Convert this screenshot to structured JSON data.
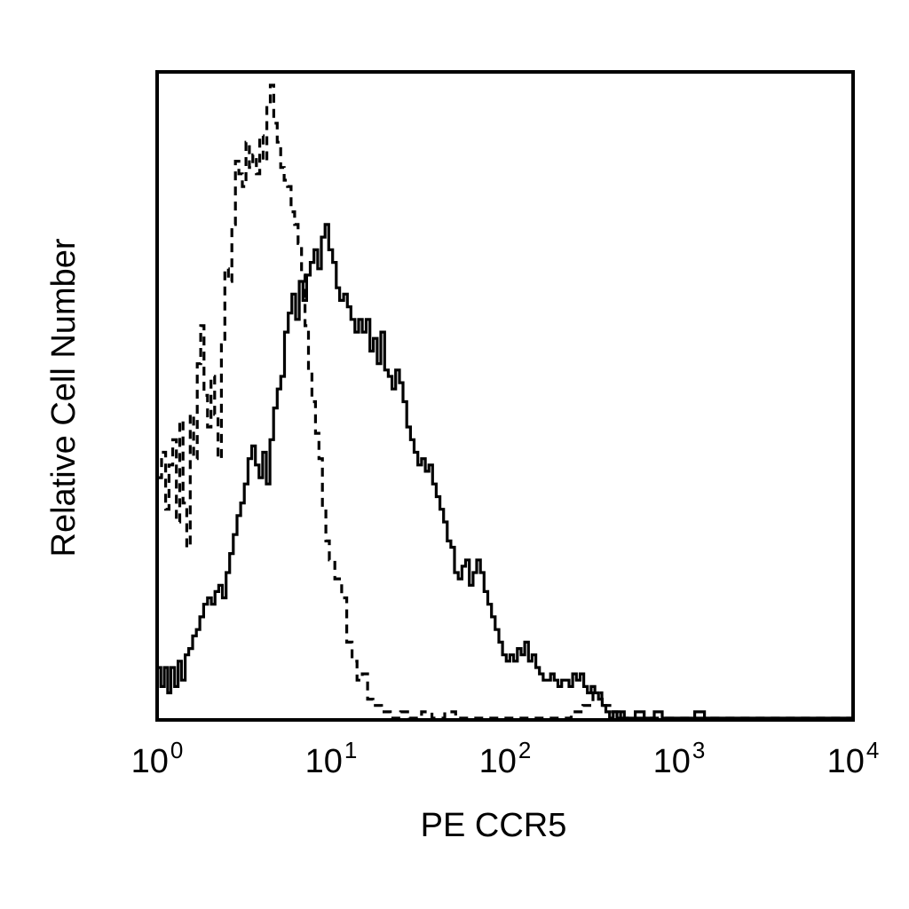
{
  "chart_data": {
    "type": "line",
    "title": "",
    "xlabel": "PE CCR5",
    "ylabel": "Relative Cell Number",
    "xscale": "log",
    "xlim": [
      1,
      10000
    ],
    "ylim": [
      0,
      100
    ],
    "grid": false,
    "legend": "none",
    "x_ticks": [
      {
        "base": "10",
        "exp": "0",
        "value": 1
      },
      {
        "base": "10",
        "exp": "1",
        "value": 10
      },
      {
        "base": "10",
        "exp": "2",
        "value": 100
      },
      {
        "base": "10",
        "exp": "3",
        "value": 1000
      },
      {
        "base": "10",
        "exp": "4",
        "value": 10000
      }
    ],
    "series": [
      {
        "style": "dashed",
        "color": "#000000",
        "points": [
          [
            1.0,
            38
          ],
          [
            1.06,
            42
          ],
          [
            1.12,
            33
          ],
          [
            1.17,
            40
          ],
          [
            1.23,
            44
          ],
          [
            1.29,
            31
          ],
          [
            1.35,
            47
          ],
          [
            1.41,
            34
          ],
          [
            1.48,
            27
          ],
          [
            1.55,
            48
          ],
          [
            1.62,
            41
          ],
          [
            1.7,
            56
          ],
          [
            1.78,
            62
          ],
          [
            1.86,
            51
          ],
          [
            1.95,
            46
          ],
          [
            2.04,
            54
          ],
          [
            2.14,
            48
          ],
          [
            2.24,
            41
          ],
          [
            2.34,
            59
          ],
          [
            2.45,
            71
          ],
          [
            2.57,
            69
          ],
          [
            2.69,
            78
          ],
          [
            2.82,
            88
          ],
          [
            2.95,
            86
          ],
          [
            3.09,
            84
          ],
          [
            3.24,
            91
          ],
          [
            3.39,
            87
          ],
          [
            3.55,
            89
          ],
          [
            3.72,
            86
          ],
          [
            3.89,
            92
          ],
          [
            4.07,
            88
          ],
          [
            4.27,
            97
          ],
          [
            4.47,
            100
          ],
          [
            4.68,
            94
          ],
          [
            4.9,
            91
          ],
          [
            5.13,
            87
          ],
          [
            5.37,
            85
          ],
          [
            5.62,
            84
          ],
          [
            5.89,
            80
          ],
          [
            6.17,
            78
          ],
          [
            6.46,
            75
          ],
          [
            6.76,
            70
          ],
          [
            7.08,
            62
          ],
          [
            7.41,
            55
          ],
          [
            7.76,
            50
          ],
          [
            8.13,
            45
          ],
          [
            8.51,
            41
          ],
          [
            8.91,
            33
          ],
          [
            9.33,
            28
          ],
          [
            9.77,
            25
          ],
          [
            10.5,
            22
          ],
          [
            11.5,
            19
          ],
          [
            12.3,
            12
          ],
          [
            13.2,
            9
          ],
          [
            14.1,
            6
          ],
          [
            15.1,
            7
          ],
          [
            16.2,
            3
          ],
          [
            17.4,
            2
          ],
          [
            19.5,
            1
          ],
          [
            21.9,
            0
          ],
          [
            25.1,
            1
          ],
          [
            28.2,
            0
          ],
          [
            33.1,
            1
          ],
          [
            38.0,
            0
          ],
          [
            45.0,
            1
          ],
          [
            52.0,
            0
          ],
          [
            70.0,
            0
          ],
          [
            100.0,
            0
          ],
          [
            150.0,
            0
          ],
          [
            200.0,
            0
          ],
          [
            240.0,
            1
          ],
          [
            280.0,
            2
          ],
          [
            320.0,
            4
          ],
          [
            360.0,
            2
          ],
          [
            400.0,
            1
          ],
          [
            450.0,
            0
          ],
          [
            1000.0,
            0
          ],
          [
            10000.0,
            0
          ]
        ]
      },
      {
        "style": "solid",
        "color": "#000000",
        "points": [
          [
            1.0,
            8
          ],
          [
            1.05,
            5
          ],
          [
            1.1,
            8
          ],
          [
            1.15,
            4
          ],
          [
            1.2,
            8
          ],
          [
            1.26,
            5
          ],
          [
            1.32,
            9
          ],
          [
            1.38,
            6
          ],
          [
            1.45,
            10
          ],
          [
            1.52,
            11
          ],
          [
            1.6,
            13
          ],
          [
            1.68,
            14
          ],
          [
            1.76,
            16
          ],
          [
            1.85,
            18
          ],
          [
            1.95,
            19
          ],
          [
            2.05,
            18
          ],
          [
            2.15,
            20
          ],
          [
            2.26,
            21
          ],
          [
            2.37,
            19
          ],
          [
            2.49,
            23
          ],
          [
            2.61,
            26
          ],
          [
            2.74,
            29
          ],
          [
            2.88,
            32
          ],
          [
            3.02,
            34
          ],
          [
            3.17,
            37
          ],
          [
            3.33,
            41
          ],
          [
            3.5,
            43
          ],
          [
            3.67,
            40
          ],
          [
            3.85,
            38
          ],
          [
            4.04,
            42
          ],
          [
            4.24,
            37
          ],
          [
            4.45,
            44
          ],
          [
            4.67,
            49
          ],
          [
            4.9,
            52
          ],
          [
            5.14,
            54
          ],
          [
            5.4,
            61
          ],
          [
            5.67,
            64
          ],
          [
            5.95,
            67
          ],
          [
            6.25,
            63
          ],
          [
            6.56,
            69
          ],
          [
            6.89,
            66
          ],
          [
            7.23,
            70
          ],
          [
            7.59,
            72
          ],
          [
            7.97,
            74
          ],
          [
            8.37,
            71
          ],
          [
            8.79,
            76
          ],
          [
            9.23,
            78
          ],
          [
            9.69,
            74
          ],
          [
            10.2,
            72
          ],
          [
            10.7,
            68
          ],
          [
            11.2,
            66
          ],
          [
            11.8,
            67
          ],
          [
            12.4,
            65
          ],
          [
            13.0,
            63
          ],
          [
            13.7,
            61
          ],
          [
            14.4,
            63
          ],
          [
            15.1,
            61
          ],
          [
            15.9,
            63
          ],
          [
            16.7,
            58
          ],
          [
            17.5,
            60
          ],
          [
            18.4,
            56
          ],
          [
            19.3,
            61
          ],
          [
            20.3,
            55
          ],
          [
            21.3,
            54
          ],
          [
            22.4,
            52
          ],
          [
            23.5,
            55
          ],
          [
            24.7,
            53
          ],
          [
            25.9,
            50
          ],
          [
            27.2,
            46
          ],
          [
            28.6,
            44
          ],
          [
            30.0,
            42
          ],
          [
            31.5,
            40
          ],
          [
            33.1,
            41
          ],
          [
            34.8,
            39
          ],
          [
            36.5,
            40
          ],
          [
            38.3,
            37
          ],
          [
            40.2,
            35
          ],
          [
            42.2,
            33
          ],
          [
            44.3,
            31
          ],
          [
            46.5,
            28
          ],
          [
            48.8,
            27
          ],
          [
            51.2,
            23
          ],
          [
            53.8,
            22
          ],
          [
            56.5,
            24
          ],
          [
            59.3,
            25
          ],
          [
            62.3,
            21
          ],
          [
            65.4,
            23
          ],
          [
            68.7,
            25
          ],
          [
            72.1,
            23
          ],
          [
            75.7,
            20
          ],
          [
            79.5,
            18
          ],
          [
            83.5,
            16
          ],
          [
            87.7,
            14
          ],
          [
            92.1,
            12
          ],
          [
            96.7,
            10
          ],
          [
            101.5,
            9
          ],
          [
            106.6,
            10
          ],
          [
            112.0,
            9
          ],
          [
            117.6,
            11
          ],
          [
            123.5,
            10
          ],
          [
            129.7,
            12
          ],
          [
            136.2,
            9
          ],
          [
            143.0,
            10
          ],
          [
            150.1,
            8
          ],
          [
            157.6,
            7
          ],
          [
            165.5,
            6
          ],
          [
            173.8,
            6
          ],
          [
            182.5,
            7
          ],
          [
            191.6,
            6
          ],
          [
            201.2,
            5
          ],
          [
            211.3,
            6
          ],
          [
            221.9,
            6
          ],
          [
            233.0,
            5
          ],
          [
            244.6,
            7
          ],
          [
            256.8,
            6
          ],
          [
            269.7,
            7
          ],
          [
            283.2,
            5
          ],
          [
            297.3,
            4
          ],
          [
            312.2,
            5
          ],
          [
            327.8,
            4
          ],
          [
            344.2,
            3
          ],
          [
            361.4,
            2
          ],
          [
            379.5,
            1
          ],
          [
            398.5,
            0
          ],
          [
            418.4,
            1
          ],
          [
            439.3,
            0
          ],
          [
            461.3,
            1
          ],
          [
            484.4,
            0
          ],
          [
            560.0,
            1
          ],
          [
            630.0,
            0
          ],
          [
            720.0,
            1
          ],
          [
            800.0,
            0
          ],
          [
            1000.0,
            0
          ],
          [
            1230.0,
            1
          ],
          [
            1400.0,
            0
          ],
          [
            10000.0,
            0
          ]
        ]
      }
    ]
  }
}
